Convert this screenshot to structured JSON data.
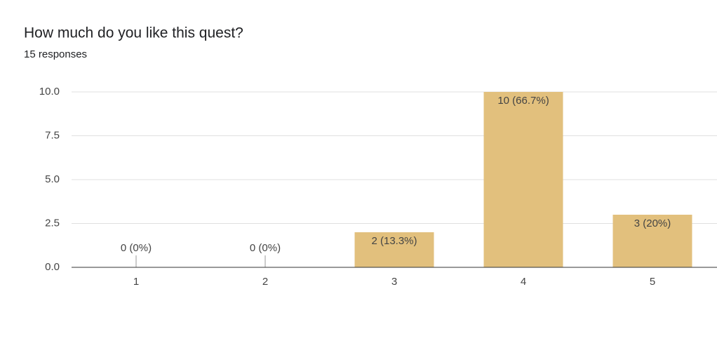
{
  "chart_data": {
    "type": "bar",
    "title": "How much do you like this quest?",
    "subtitle": "15 responses",
    "categories": [
      "1",
      "2",
      "3",
      "4",
      "5"
    ],
    "values": [
      0,
      0,
      2,
      10,
      3
    ],
    "value_labels": [
      "0 (0%)",
      "0 (0%)",
      "2 (13.3%)",
      "10 (66.7%)",
      "3 (20%)"
    ],
    "color": "#e2c07d",
    "ylim": [
      0,
      10
    ],
    "yticks": [
      {
        "value": 0,
        "label": "0.0"
      },
      2.5,
      {
        "value": 5,
        "label": "5.0"
      },
      7.5,
      {
        "value": 10,
        "label": "10.0"
      }
    ],
    "grid": true
  }
}
